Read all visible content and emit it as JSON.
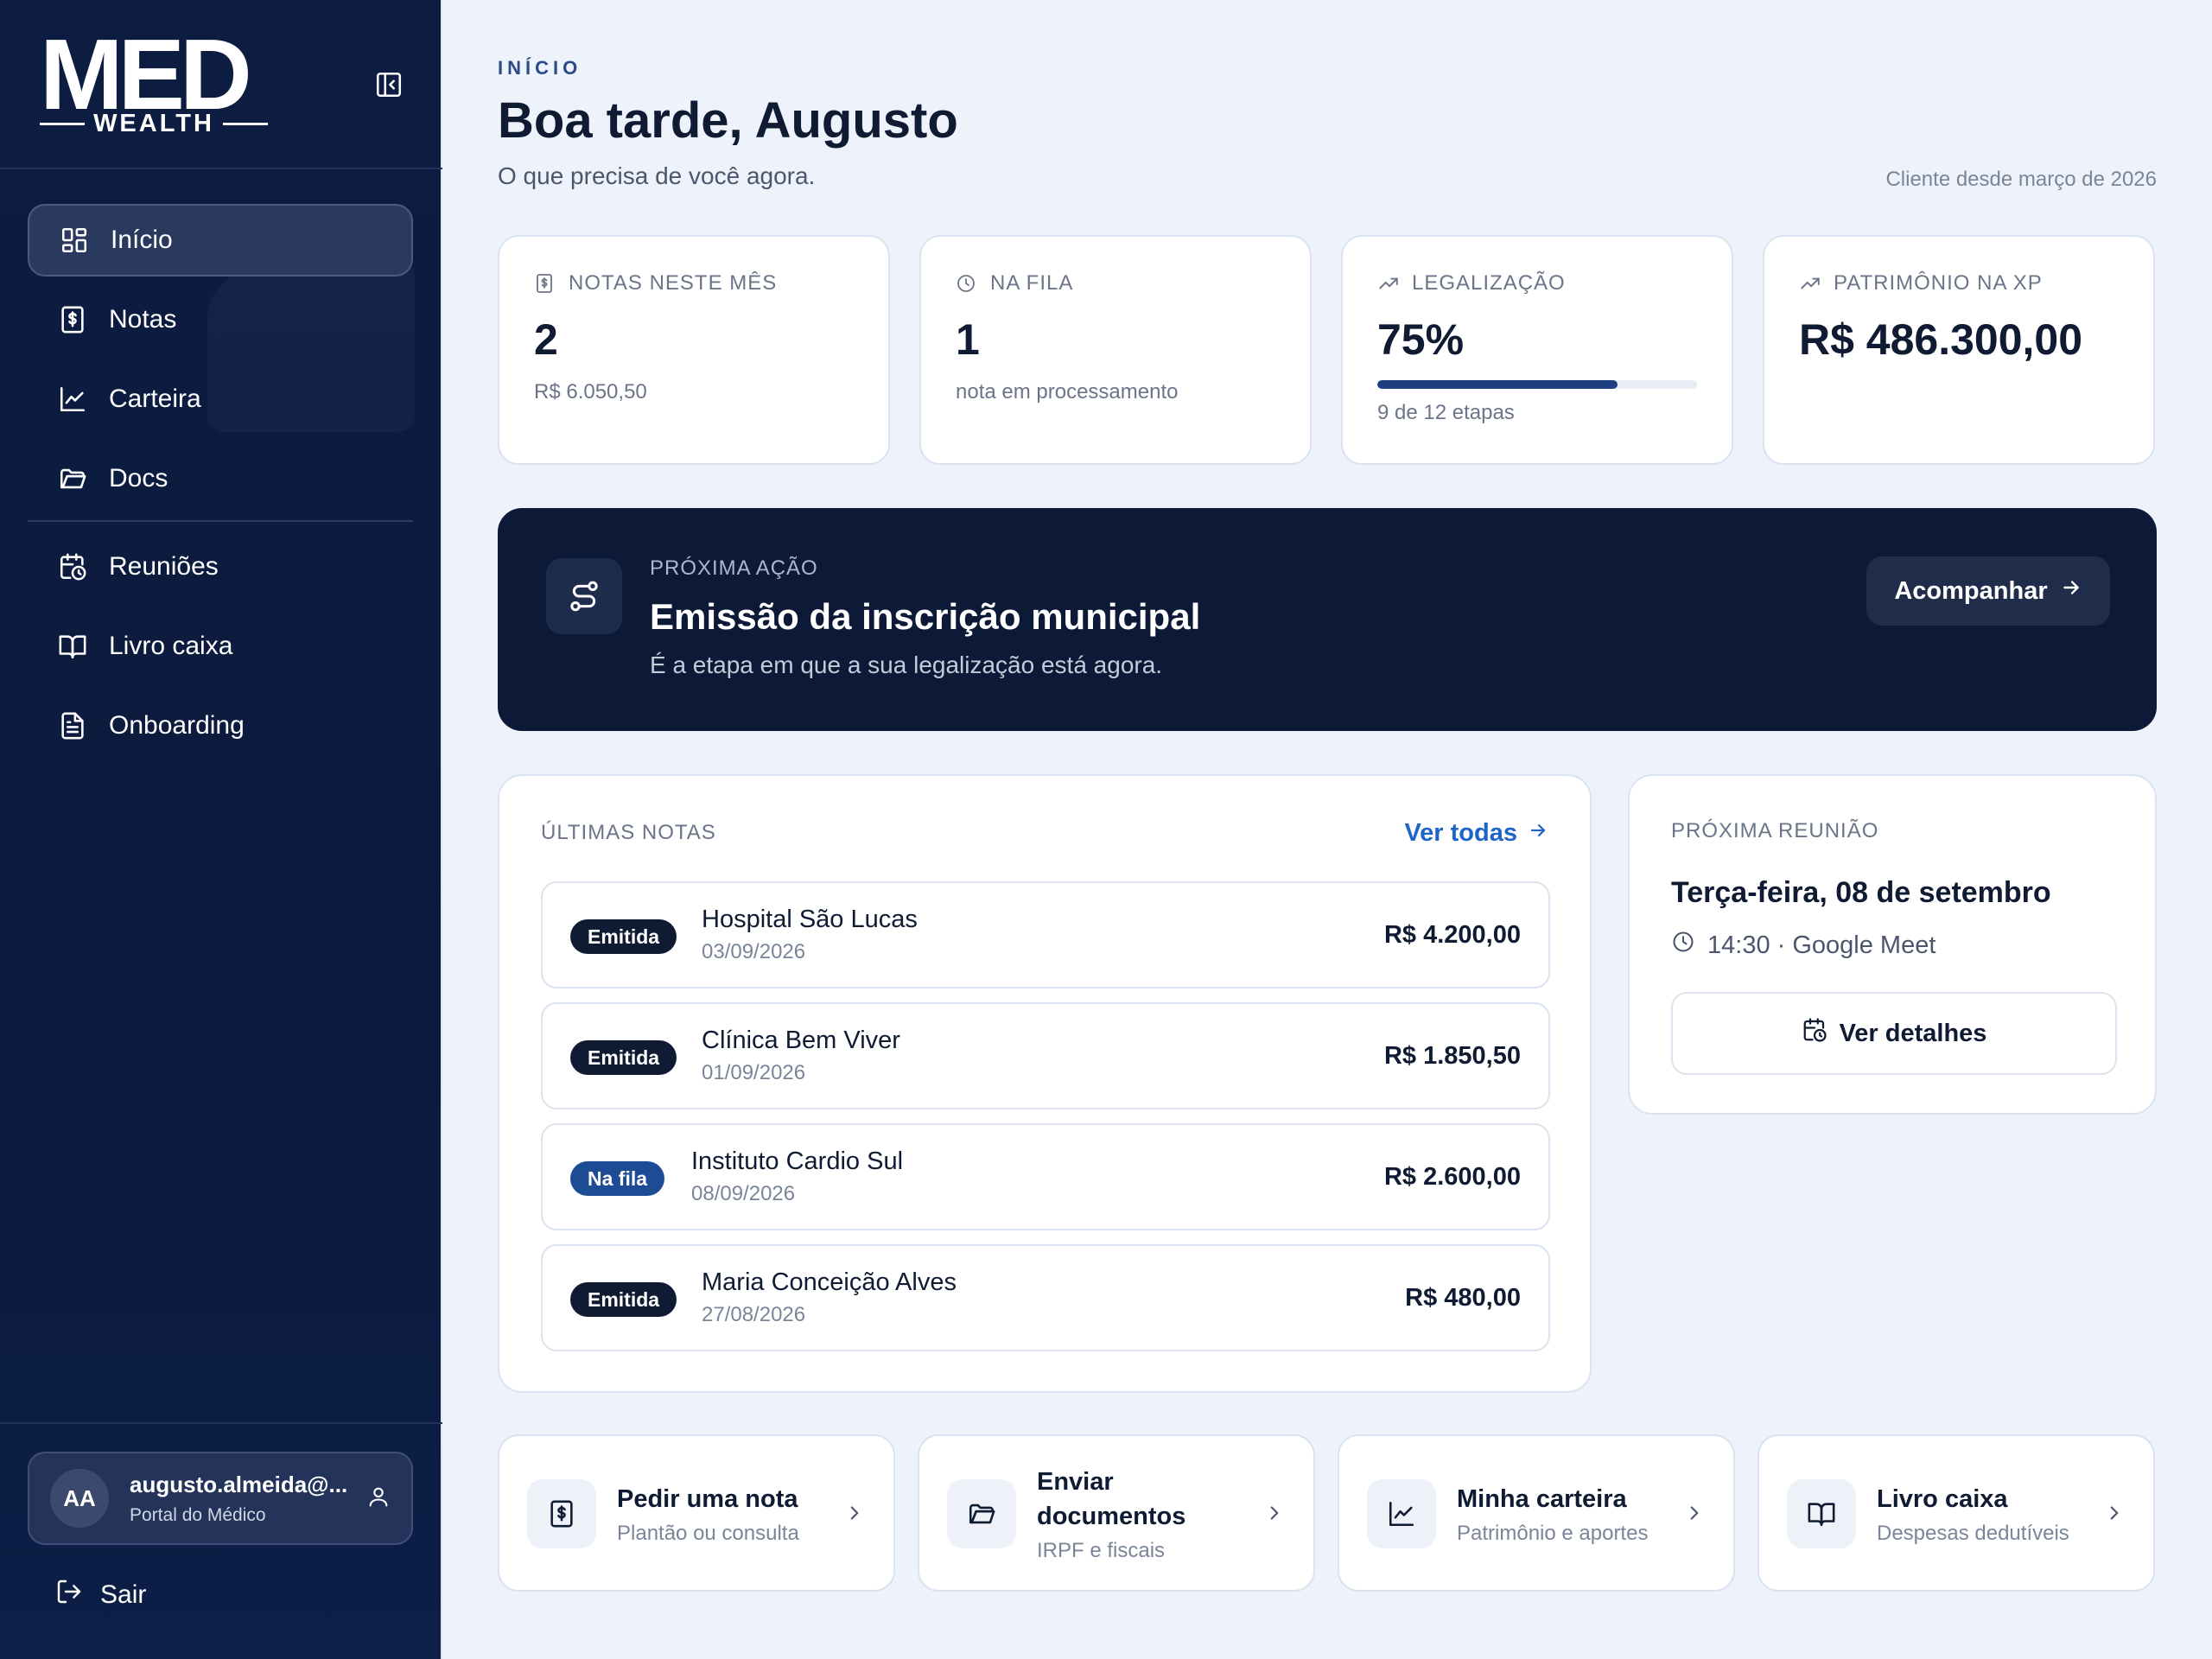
{
  "brand": {
    "name": "MED",
    "tagline": "WEALTH"
  },
  "sidebar": {
    "items": [
      {
        "label": "Início",
        "icon": "dashboard-icon",
        "active": true
      },
      {
        "label": "Notas",
        "icon": "invoice-icon"
      },
      {
        "label": "Carteira",
        "icon": "chart-line-icon"
      },
      {
        "label": "Docs",
        "icon": "folder-icon"
      },
      {
        "label": "Reuniões",
        "icon": "calendar-clock-icon"
      },
      {
        "label": "Livro caixa",
        "icon": "book-open-icon"
      },
      {
        "label": "Onboarding",
        "icon": "document-icon"
      }
    ],
    "user": {
      "initials": "AA",
      "email": "augusto.almeida@...",
      "role": "Portal do Médico"
    },
    "logout_label": "Sair"
  },
  "header": {
    "eyebrow": "INÍCIO",
    "greeting": "Boa tarde, Augusto",
    "subtitle": "O que precisa de você agora.",
    "client_since": "Cliente desde março de 2026"
  },
  "stats": [
    {
      "label": "NOTAS NESTE MÊS",
      "icon": "invoice-icon",
      "value": "2",
      "sub": "R$ 6.050,50"
    },
    {
      "label": "NA FILA",
      "icon": "clock-icon",
      "value": "1",
      "sub": "nota em processamento"
    },
    {
      "label": "LEGALIZAÇÃO",
      "icon": "trend-up-icon",
      "value": "75%",
      "progress": 0.75,
      "sub": "9 de 12 etapas"
    },
    {
      "label": "PATRIMÔNIO NA XP",
      "icon": "trend-up-icon",
      "value": "R$ 486.300,00",
      "sub": ""
    }
  ],
  "next_action": {
    "label": "PRÓXIMA AÇÃO",
    "title": "Emissão da inscrição municipal",
    "description": "É a etapa em que a sua legalização está agora.",
    "button": "Acompanhar",
    "icon": "route-icon"
  },
  "notes": {
    "title": "ÚLTIMAS NOTAS",
    "see_all": "Ver todas",
    "rows": [
      {
        "status": "Emitida",
        "status_color": "#0f1a33",
        "name": "Hospital São Lucas",
        "date": "03/09/2026",
        "amount": "R$ 4.200,00"
      },
      {
        "status": "Emitida",
        "status_color": "#0f1a33",
        "name": "Clínica Bem Viver",
        "date": "01/09/2026",
        "amount": "R$ 1.850,50"
      },
      {
        "status": "Na fila",
        "status_color": "#1d4b94",
        "name": "Instituto Cardio Sul",
        "date": "08/09/2026",
        "amount": "R$ 2.600,00"
      },
      {
        "status": "Emitida",
        "status_color": "#0f1a33",
        "name": "Maria Conceição Alves",
        "date": "27/08/2026",
        "amount": "R$ 480,00"
      }
    ]
  },
  "meeting": {
    "title": "PRÓXIMA REUNIÃO",
    "date": "Terça-feira, 08 de setembro",
    "time": "14:30 · Google Meet",
    "button": "Ver detalhes"
  },
  "quick_actions": [
    {
      "title": "Pedir uma nota",
      "subtitle": "Plantão ou consulta",
      "icon": "invoice-icon"
    },
    {
      "title": "Enviar documentos",
      "subtitle": "IRPF e fiscais",
      "icon": "folder-icon"
    },
    {
      "title": "Minha carteira",
      "subtitle": "Patrimônio e aportes",
      "icon": "chart-line-icon"
    },
    {
      "title": "Livro caixa",
      "subtitle": "Despesas dedutíveis",
      "icon": "book-open-icon"
    }
  ],
  "colors": {
    "sidebar": "#0d1d42",
    "accent": "#1f64c8",
    "dark_panel": "#0c1a38",
    "background": "#eef3fb"
  }
}
